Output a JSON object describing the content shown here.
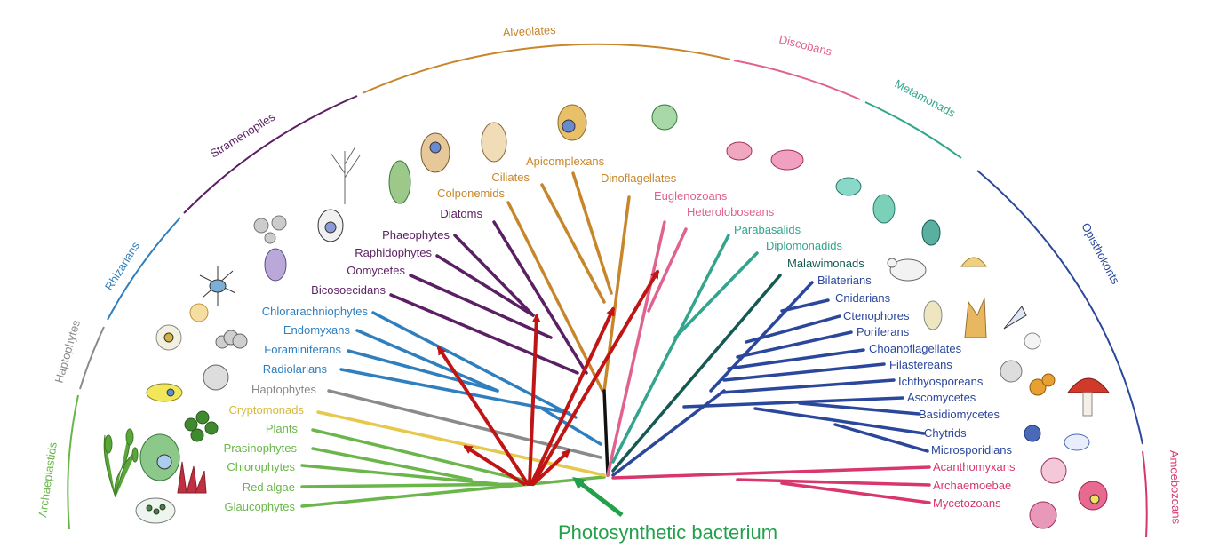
{
  "groups": {
    "archaeplastids": "Archaeplastids",
    "haptophytes": "Haptophytes",
    "rhizarians": "Rhizarians",
    "stramenopiles": "Stramenopiles",
    "alveolates": "Alveolates",
    "discobans": "Discobans",
    "metamonads": "Metamonads",
    "opisthokonts": "Opisthokonts",
    "amoebozoans": "Amoebozoans"
  },
  "taxa": {
    "glaucophytes": "Glaucophytes",
    "red_algae": "Red algae",
    "chlorophytes": "Chlorophytes",
    "prasinophytes": "Prasinophytes",
    "plants": "Plants",
    "cryptomonads": "Cryptomonads",
    "haptophytes": "Haptophytes",
    "radiolarians": "Radiolarians",
    "foraminiferans": "Foraminiferans",
    "endomyxans": "Endomyxans",
    "chlorarachniophytes": "Chlorarachniophytes",
    "bicosoecidans": "Bicosoecidans",
    "oomycetes": "Oomycetes",
    "raphidophytes": "Raphidophytes",
    "phaeophytes": "Phaeophytes",
    "diatoms": "Diatoms",
    "colponemids": "Colponemids",
    "ciliates": "Ciliates",
    "apicomplexans": "Apicomplexans",
    "dinoflagellates": "Dinoflagellates",
    "euglenozoans": "Euglenozoans",
    "heteroloboseans": "Heteroloboseans",
    "parabasalids": "Parabasalids",
    "diplomonadids": "Diplomonadids",
    "malawimonads": "Malawimonads",
    "bilaterians": "Bilaterians",
    "cnidarians": "Cnidarians",
    "ctenophores": "Ctenophores",
    "poriferans": "Poriferans",
    "choanoflagellates": "Choanoflagellates",
    "filastereans": "Filastereans",
    "ichthyosporeans": "Ichthyosporeans",
    "ascomycetes": "Ascomycetes",
    "basidiomycetes": "Basidiomycetes",
    "chytrids": "Chytrids",
    "microsporidians": "Microsporidians",
    "acanthomyxans": "Acanthomyxans",
    "archaemoebae": "Archaemoebae",
    "mycetozoans": "Mycetozoans"
  },
  "bacterium_label": "Photosynthetic bacterium",
  "colors": {
    "archaeplastids": "#6ab64a",
    "cryptomonads": "#e6c84a",
    "haptophytes": "#8a8a8a",
    "rhizarians": "#2f7fbf",
    "stramenopiles": "#5b1f63",
    "alveolates": "#c8862a",
    "discobans": "#e0628f",
    "metamonads": "#33a58c",
    "malawimonads": "#155a52",
    "opisthokonts": "#2a479c",
    "amoebozoans": "#d8366f",
    "arrows": "#c01515",
    "bacterium": "#22a04a"
  }
}
